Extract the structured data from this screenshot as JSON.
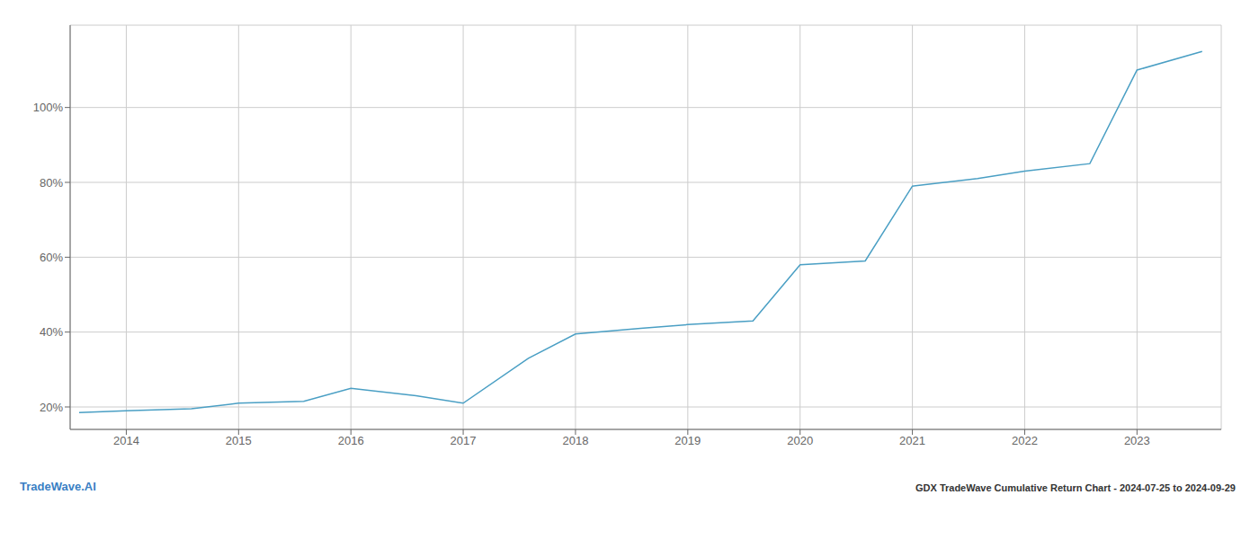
{
  "chart_data": {
    "type": "line",
    "title": "GDX TradeWave Cumulative Return Chart - 2024-07-25 to 2024-09-29",
    "annotations": [
      "TradeWave.AI"
    ],
    "color": "#4a9fc4",
    "x": [
      2013.58,
      2014.0,
      2014.58,
      2015.0,
      2015.58,
      2016.0,
      2016.58,
      2017.0,
      2017.58,
      2018.0,
      2018.58,
      2019.0,
      2019.58,
      2020.0,
      2020.58,
      2021.0,
      2021.58,
      2022.0,
      2022.58,
      2023.0,
      2023.58
    ],
    "values": [
      18.5,
      19.0,
      19.5,
      21.0,
      21.5,
      25.0,
      23.0,
      21.0,
      33.0,
      39.5,
      41.0,
      42.0,
      43.0,
      58.0,
      59.0,
      79.0,
      81.0,
      83.0,
      85.0,
      110.0,
      115.0
    ],
    "xlim": [
      2013.5,
      2023.75
    ],
    "xticks": [
      2014,
      2015,
      2016,
      2017,
      2018,
      2019,
      2020,
      2021,
      2022,
      2023
    ],
    "ylim": [
      14,
      122
    ],
    "yticks": [
      {
        "value": 20,
        "label": "20%"
      },
      {
        "value": 40,
        "label": "40%"
      },
      {
        "value": 60,
        "label": "60%"
      },
      {
        "value": 80,
        "label": "80%"
      },
      {
        "value": 100,
        "label": "100%"
      }
    ],
    "grid": true
  }
}
